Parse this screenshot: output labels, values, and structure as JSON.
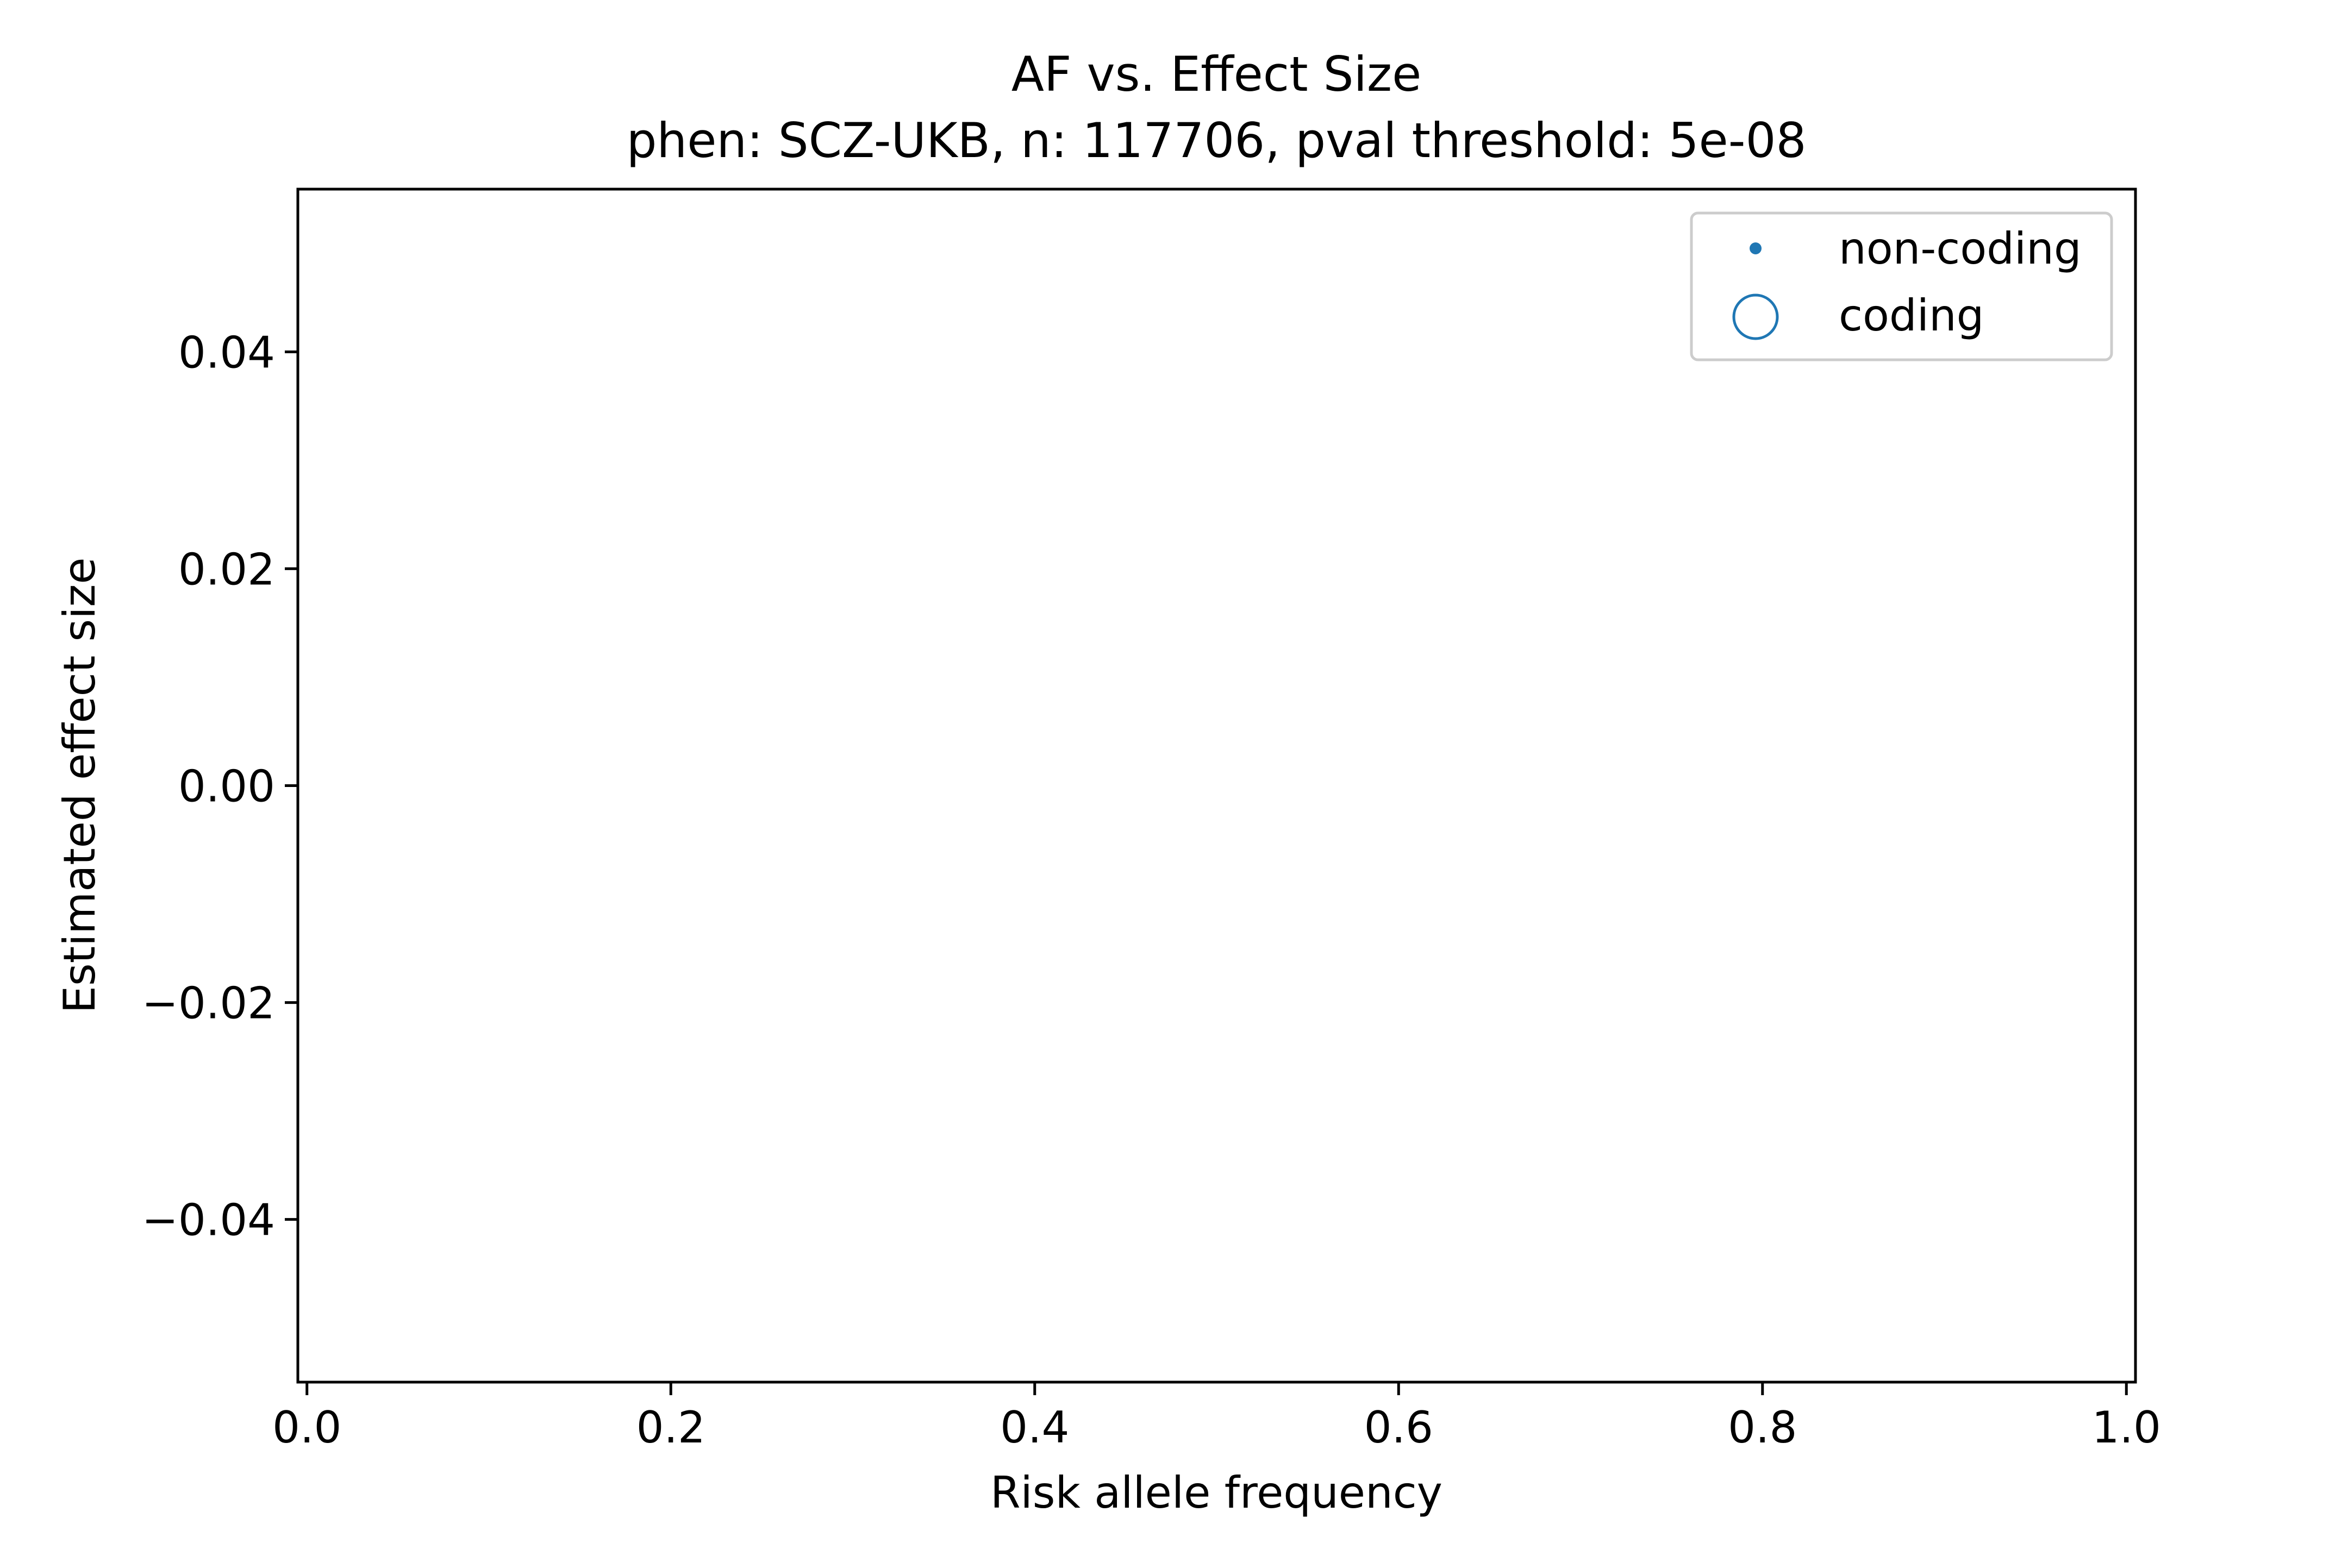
{
  "chart_data": {
    "type": "scatter",
    "title": "AF vs. Effect Size",
    "subtitle": "phen: SCZ-UKB, n: 117706, pval threshold: 5e-08",
    "xlabel": "Risk allele frequency",
    "ylabel": "Estimated effect size",
    "xlim": [
      -0.005,
      1.005
    ],
    "ylim": [
      -0.055,
      0.055
    ],
    "x_ticks": [
      0.0,
      0.2,
      0.4,
      0.6,
      0.8,
      1.0
    ],
    "x_tick_labels": [
      "0.0",
      "0.2",
      "0.4",
      "0.6",
      "0.8",
      "1.0"
    ],
    "y_ticks": [
      0.04,
      0.02,
      0.0,
      -0.02,
      -0.04
    ],
    "y_tick_labels": [
      "0.04",
      "0.02",
      "0.00",
      "−0.02",
      "−0.04"
    ],
    "grid": false,
    "legend_position": "upper-right",
    "series": [
      {
        "name": "non-coding",
        "marker": "small-filled-dot",
        "color": "#1f77b4",
        "x": [],
        "y": []
      },
      {
        "name": "coding",
        "marker": "large-open-circle",
        "color": "#1f77b4",
        "x": [],
        "y": []
      }
    ]
  }
}
